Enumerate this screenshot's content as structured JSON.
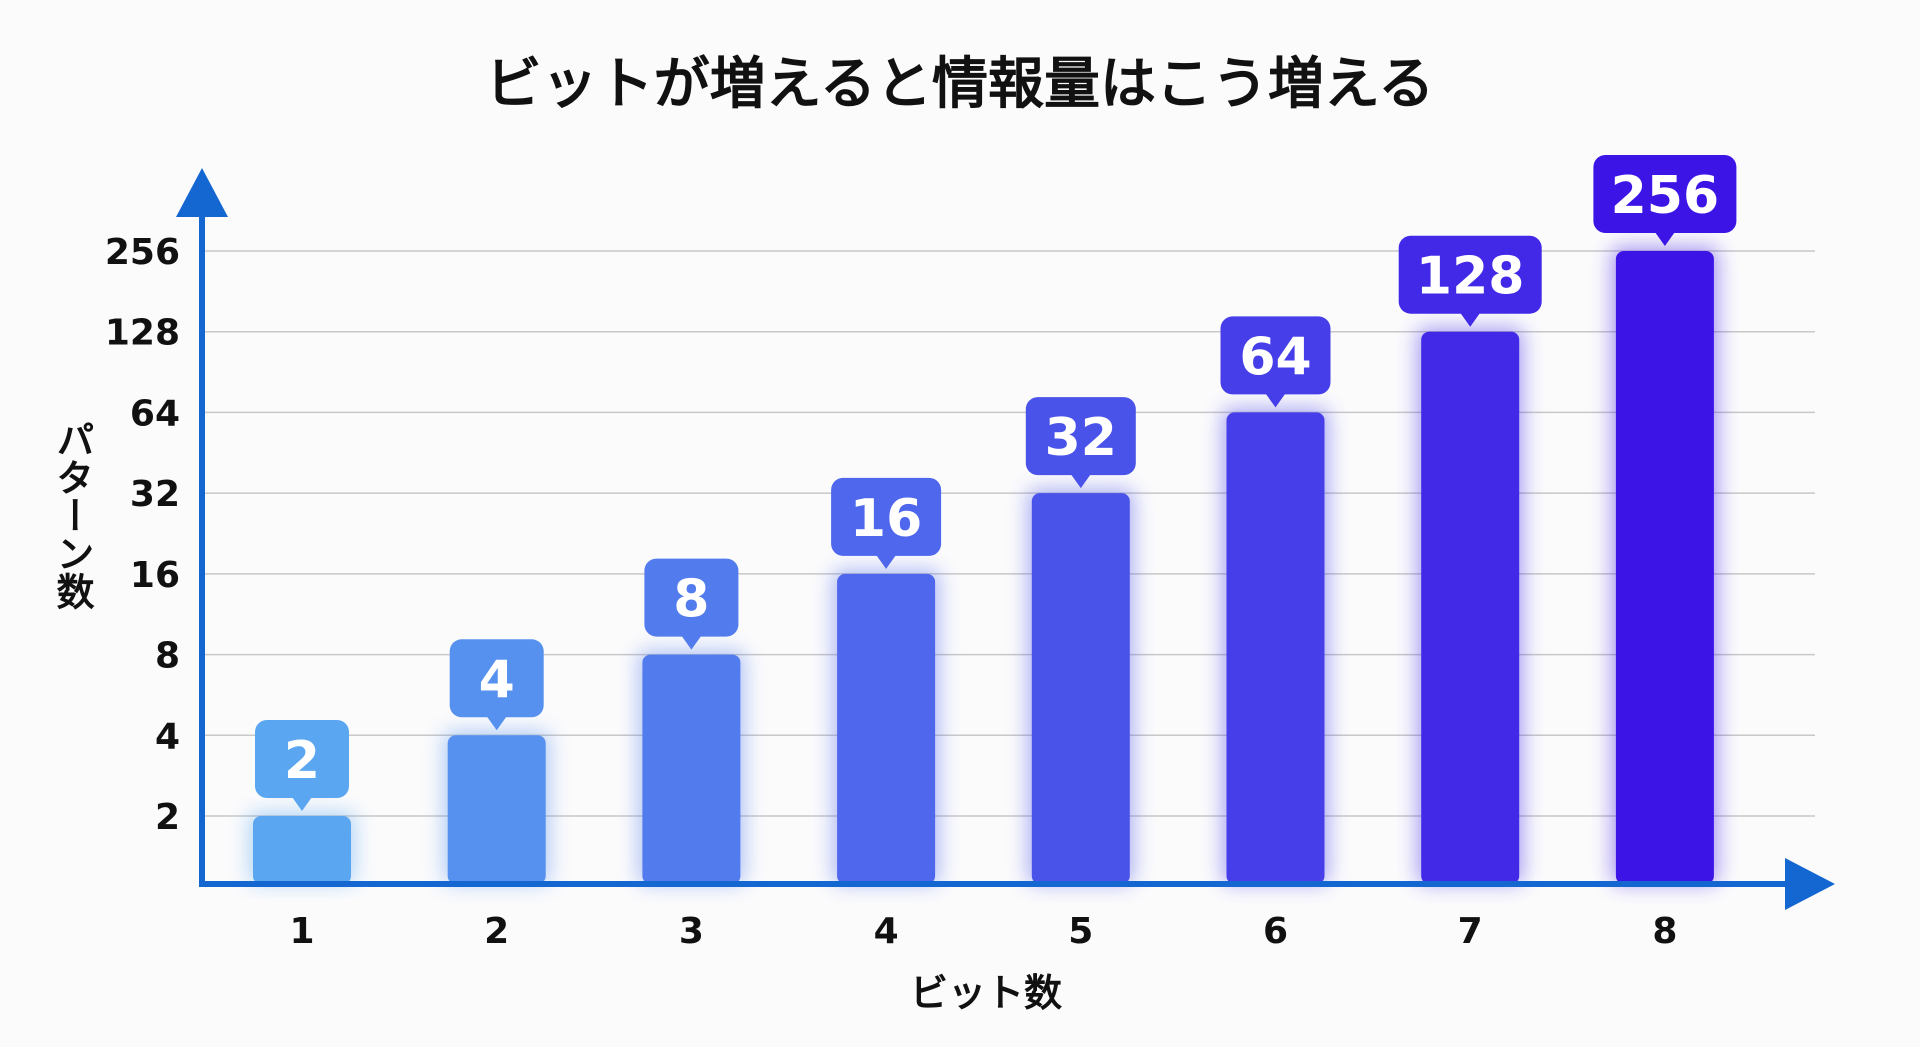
{
  "chart_data": {
    "type": "bar",
    "title": "ビットが増えると情報量はこう増える",
    "xlabel": "ビット数",
    "ylabel": "パターン数",
    "yscale": "log2",
    "categories": [
      "1",
      "2",
      "3",
      "4",
      "5",
      "6",
      "7",
      "8"
    ],
    "values": [
      2,
      4,
      8,
      16,
      32,
      64,
      128,
      256
    ],
    "data_labels": [
      "2",
      "4",
      "8",
      "16",
      "32",
      "64",
      "128",
      "256"
    ],
    "yticks": [
      2,
      4,
      8,
      16,
      32,
      64,
      128,
      256
    ],
    "ytick_labels": [
      "2",
      "4",
      "8",
      "16",
      "32",
      "64",
      "128",
      "256"
    ],
    "grid": true,
    "legend": "none",
    "colors": {
      "bar_start": "#5aa6f0",
      "bar_end": "#3d14e6",
      "axis": "#1466d0",
      "grid": "#c8c8c8"
    }
  }
}
